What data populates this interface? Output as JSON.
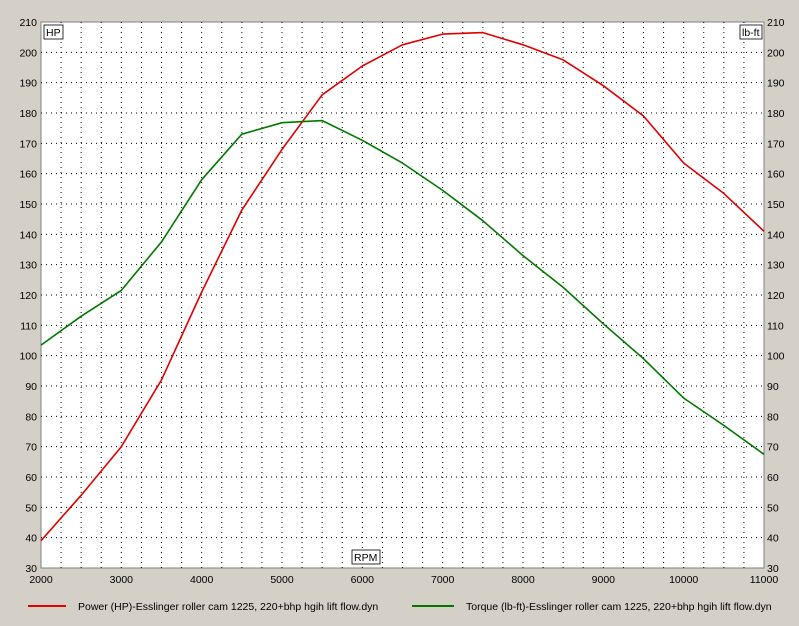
{
  "chart_data": {
    "type": "line",
    "xlabel": "RPM",
    "ylabel_left": "HP",
    "ylabel_right": "lb-ft",
    "xlim": [
      2000,
      11000
    ],
    "ylim": [
      30,
      210
    ],
    "x_ticks": [
      "2000",
      "3000",
      "4000",
      "5000",
      "6000",
      "7000",
      "8000",
      "9000",
      "10000",
      "11000"
    ],
    "y_ticks": [
      "30",
      "40",
      "50",
      "60",
      "70",
      "80",
      "90",
      "100",
      "110",
      "120",
      "130",
      "140",
      "150",
      "160",
      "170",
      "180",
      "190",
      "200",
      "210"
    ],
    "grid": true,
    "legend_position": "bottom",
    "series": [
      {
        "name": "Power (HP)-Esslinger roller cam 1225,   220+bhp hgih lift flow.dyn",
        "color": "#e00000",
        "x": [
          2000,
          2500,
          3000,
          3500,
          4000,
          4500,
          5000,
          5500,
          6000,
          6500,
          7000,
          7500,
          8000,
          8500,
          9000,
          9500,
          10000,
          10500,
          11000
        ],
        "y": [
          39,
          54,
          70,
          92,
          121,
          148,
          168,
          186,
          195.5,
          202.5,
          206,
          206.5,
          202.5,
          197.5,
          189,
          179,
          163.5,
          153.5,
          141
        ]
      },
      {
        "name": "Torque (lb-ft)-Esslinger roller cam 1225,   220+bhp hgih lift flow.dyn",
        "color": "#007800",
        "x": [
          2000,
          2500,
          3000,
          3500,
          4000,
          4500,
          5000,
          5500,
          6000,
          6500,
          7000,
          7500,
          8000,
          8500,
          9000,
          9500,
          10000,
          10500,
          11000
        ],
        "y": [
          103.5,
          113,
          121.5,
          137.5,
          158,
          173,
          176.8,
          177.5,
          171,
          163.5,
          154.5,
          144.5,
          133,
          122.5,
          110.5,
          99,
          86,
          77,
          67.5
        ]
      }
    ]
  }
}
